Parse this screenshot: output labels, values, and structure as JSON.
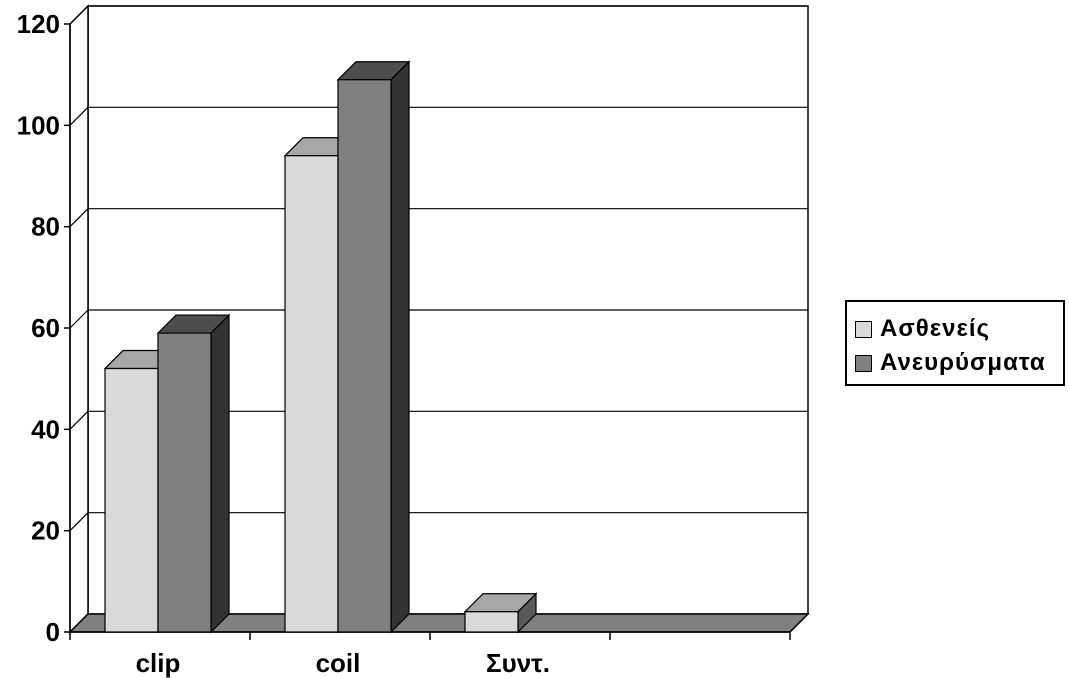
{
  "chart_data": {
    "type": "bar",
    "categories": [
      "clip",
      "coil",
      "Συντ.",
      ""
    ],
    "series": [
      {
        "name": "Ασθενείς",
        "values": [
          52,
          94,
          4,
          0
        ],
        "color": "#d9d9d9",
        "top_color": "#a6a6a6",
        "side_color": "#595959"
      },
      {
        "name": "Ανευρύσματα",
        "values": [
          59,
          109,
          0,
          0
        ],
        "color": "#808080",
        "top_color": "#4d4d4d",
        "side_color": "#333333"
      }
    ],
    "y_ticks": [
      "0",
      "20",
      "40",
      "60",
      "80",
      "100",
      "120"
    ],
    "ylim": [
      0,
      120
    ],
    "grid": true,
    "legend_position": "right",
    "style": "3d-clustered-column"
  },
  "legend": {
    "items": [
      {
        "label": "Ασθενείς",
        "color": "#d9d9d9"
      },
      {
        "label": "Ανευρύσματα",
        "color": "#808080"
      }
    ]
  }
}
